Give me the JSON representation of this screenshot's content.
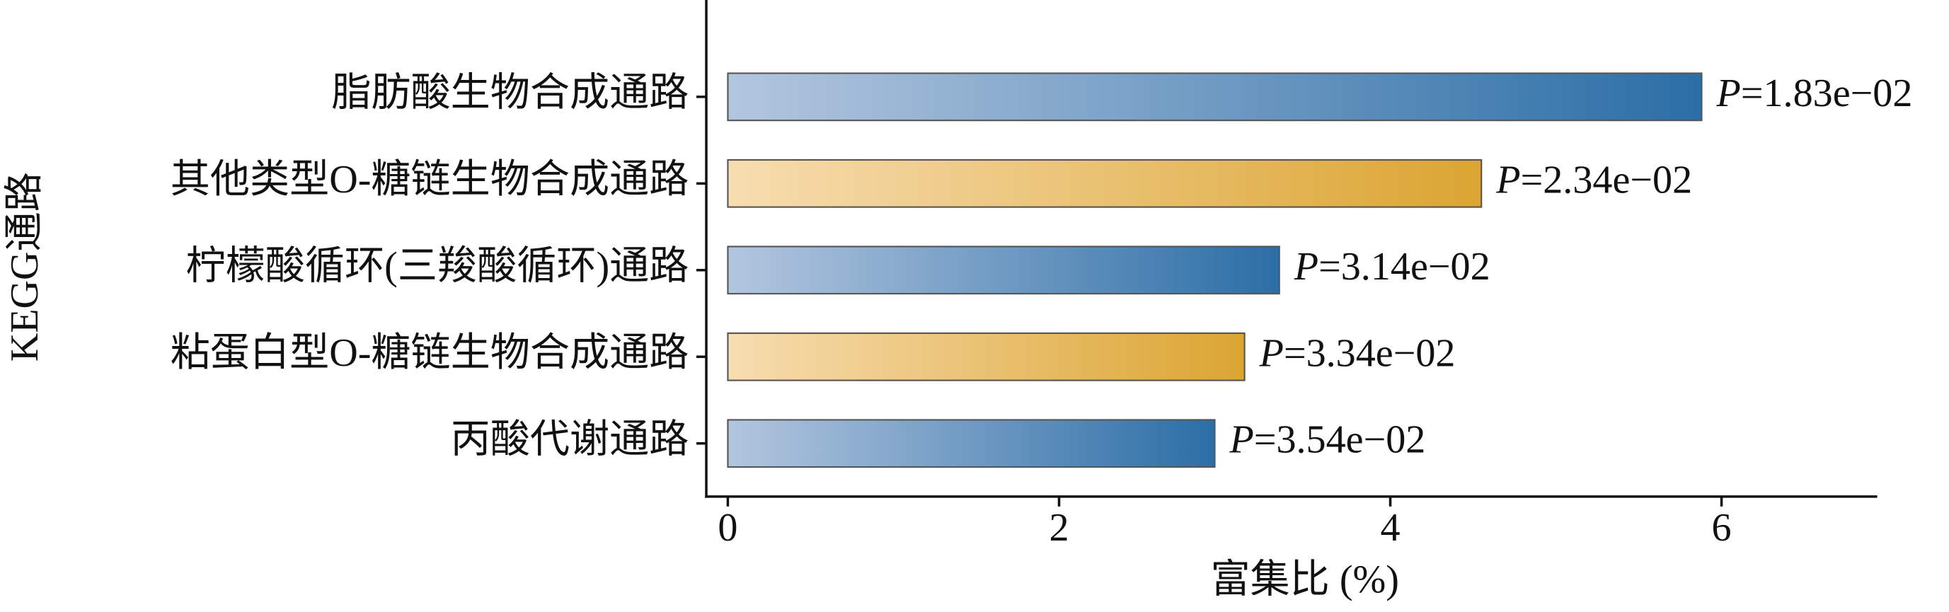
{
  "chart_data": {
    "type": "barh",
    "categories": [
      "脂肪酸生物合成通路",
      "其他类型O-糖链生物合成通路",
      "柠檬酸循环(三羧酸循环)通路",
      "粘蛋白型O-糖链生物合成通路",
      "丙酸代谢通路"
    ],
    "values": [
      5.88,
      4.55,
      3.33,
      3.12,
      2.94
    ],
    "colors": [
      [
        "#b3c6df",
        "#2b6ea6"
      ],
      [
        "#f7ddb0",
        "#dba532"
      ],
      [
        "#b3c6df",
        "#2b6ea6"
      ],
      [
        "#f7ddb0",
        "#dba532"
      ],
      [
        "#b3c6df",
        "#2b6ea6"
      ]
    ],
    "annotations": [
      {
        "italic": "P",
        "text": "=1.83e−02"
      },
      {
        "italic": "P",
        "text": "=2.34e−02"
      },
      {
        "italic": "P",
        "text": "=3.14e−02"
      },
      {
        "italic": "P",
        "text": "=3.34e−02"
      },
      {
        "italic": "P",
        "text": "=3.54e−02"
      }
    ],
    "xlabel": "富集比 (%)",
    "ylabel": "KEGG通路",
    "xlim": [
      -0.13,
      6.94
    ],
    "xticks": [
      0,
      2,
      4,
      6
    ]
  }
}
